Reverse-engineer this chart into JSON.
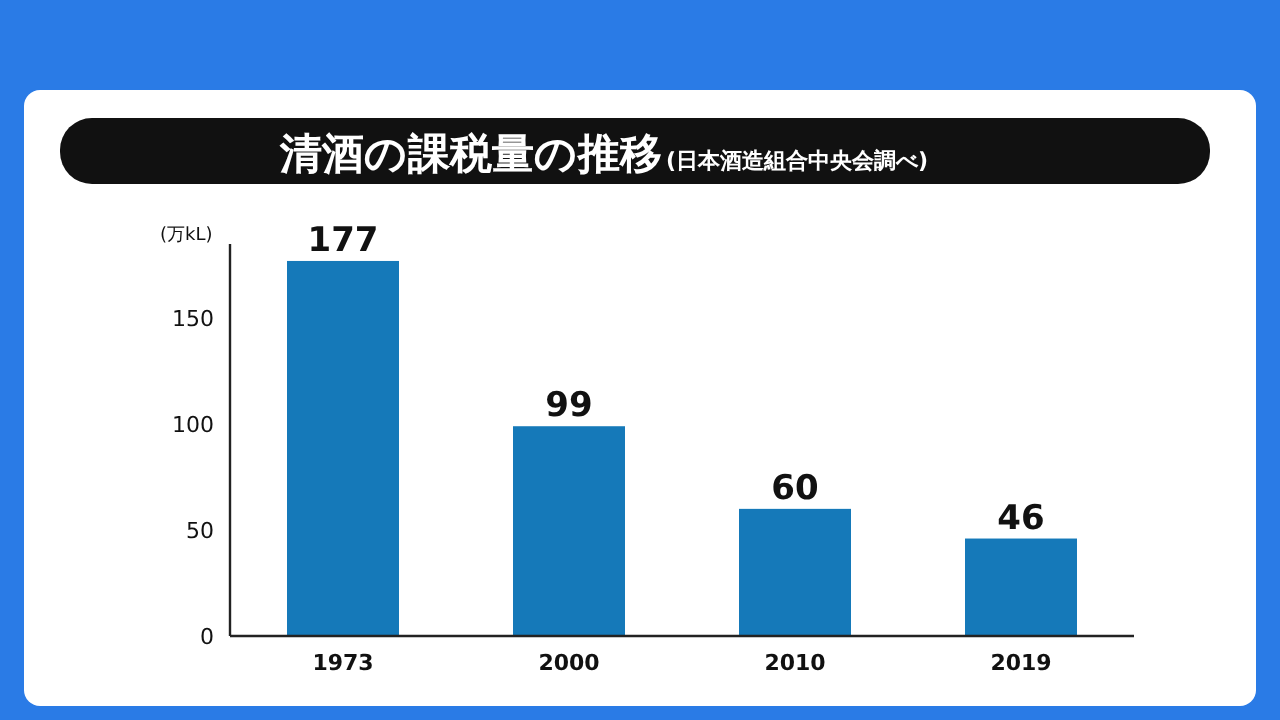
{
  "chart_data": {
    "type": "bar",
    "title": "清酒の課税量の推移",
    "subtitle": "(日本酒造組合中央会調べ)",
    "ylabel": "(万kL)",
    "categories": [
      "1973",
      "2000",
      "2010",
      "2019"
    ],
    "values": [
      177,
      99,
      60,
      46
    ],
    "color": "#1579b9",
    "ylim": [
      0,
      185
    ],
    "yticks": [
      0,
      50,
      100,
      150
    ],
    "data_labels": true
  }
}
